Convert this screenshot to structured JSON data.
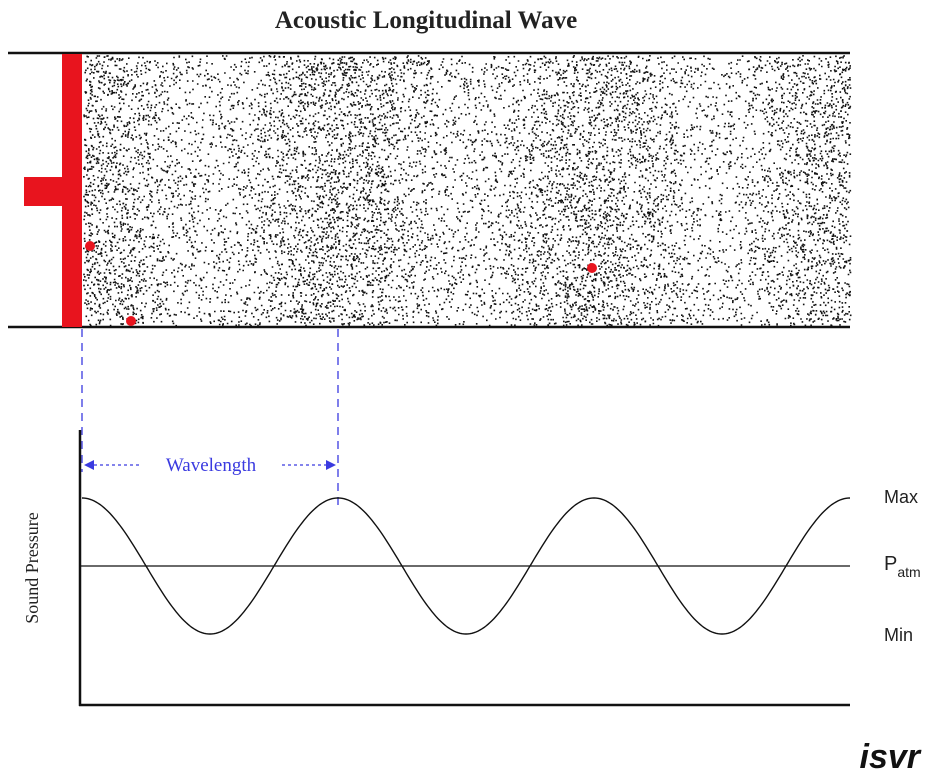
{
  "title": "Acoustic Longitudinal Wave",
  "wavelength_label": "Wavelength",
  "axis_label": "Sound Pressure",
  "levels": {
    "max": "Max",
    "patm": {
      "main": "P",
      "sub": "atm"
    },
    "min": "Min"
  },
  "logo": "isvr"
}
